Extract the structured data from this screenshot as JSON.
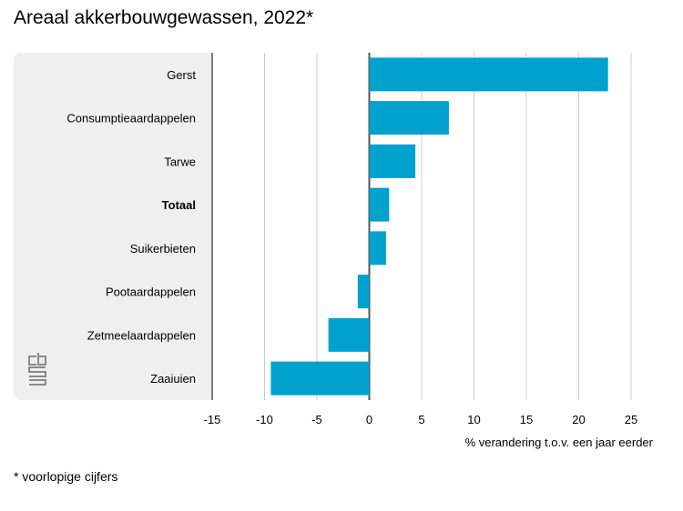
{
  "title": "Areaal akkerbouwgewassen, 2022*",
  "footnote": "* voorlopige cijfers",
  "colors": {
    "bar": "#00a1cd",
    "panel": "#efefef",
    "grid": "#cccccc",
    "axis": "#555555"
  },
  "logo": {
    "icon": "cbs-logo-icon"
  },
  "chart_data": {
    "type": "bar",
    "orientation": "horizontal",
    "title": "Areaal akkerbouwgewassen, 2022*",
    "xlabel": "% verandering t.o.v. een jaar eerder",
    "ylabel": "",
    "xlim": [
      -15,
      27
    ],
    "xticks": [
      -15,
      -10,
      -5,
      0,
      5,
      10,
      15,
      20,
      25
    ],
    "grid": true,
    "categories": [
      "Gerst",
      "Consumptieaardappelen",
      "Tarwe",
      "Totaal",
      "Suikerbieten",
      "Pootaardappelen",
      "Zetmeelaardappelen",
      "Zaaiuien"
    ],
    "values": [
      22.8,
      7.6,
      4.4,
      1.9,
      1.6,
      -1.1,
      -3.9,
      -9.4
    ],
    "highlight": [
      "Totaal"
    ]
  }
}
